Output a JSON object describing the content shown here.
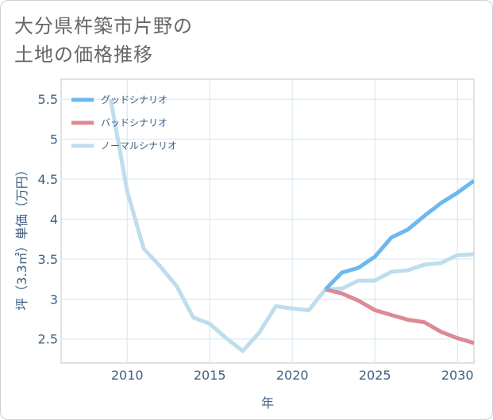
{
  "title": "大分県杵築市片野の\n土地の価格推移",
  "chart_data": {
    "type": "line",
    "title": "大分県杵築市片野の土地の価格推移",
    "xlabel": "年",
    "ylabel": "坪（3.3㎡）単価（万円）",
    "xlim": [
      2006,
      2031
    ],
    "ylim": [
      2.2,
      5.75
    ],
    "x_ticks": [
      2010,
      2015,
      2020,
      2025,
      2030
    ],
    "x_tick_labels": [
      "2010",
      "2015",
      "2020",
      "2025",
      "2030"
    ],
    "y_ticks": [
      2.5,
      3,
      3.5,
      4,
      4.5,
      5,
      5.5
    ],
    "y_tick_labels": [
      "2.5",
      "3",
      "3.5",
      "4",
      "4.5",
      "5",
      "5.5"
    ],
    "legend_position": "top-left",
    "series": [
      {
        "name": "グッドシナリオ",
        "color": "#6cb9ee",
        "x": [
          2022,
          2023,
          2024,
          2025,
          2026,
          2027,
          2028,
          2029,
          2030,
          2031
        ],
        "y": [
          3.12,
          3.33,
          3.39,
          3.53,
          3.77,
          3.87,
          4.04,
          4.2,
          4.33,
          4.48
        ]
      },
      {
        "name": "バッドシナリオ",
        "color": "#dc8a93",
        "x": [
          2022,
          2023,
          2024,
          2025,
          2026,
          2027,
          2028,
          2029,
          2030,
          2031
        ],
        "y": [
          3.12,
          3.07,
          2.98,
          2.86,
          2.8,
          2.74,
          2.71,
          2.59,
          2.51,
          2.45
        ]
      },
      {
        "name": "ノーマルシナリオ",
        "color": "#bedded",
        "x": [
          2009,
          2010,
          2011,
          2012,
          2013,
          2014,
          2015,
          2016,
          2017,
          2018,
          2019,
          2020,
          2021,
          2022,
          2023,
          2024,
          2025,
          2026,
          2027,
          2028,
          2029,
          2030,
          2031
        ],
        "y": [
          5.5,
          4.35,
          3.63,
          3.41,
          3.16,
          2.77,
          2.69,
          2.51,
          2.35,
          2.58,
          2.91,
          2.88,
          2.86,
          3.12,
          3.13,
          3.23,
          3.23,
          3.34,
          3.36,
          3.43,
          3.45,
          3.55,
          3.56
        ]
      }
    ]
  }
}
